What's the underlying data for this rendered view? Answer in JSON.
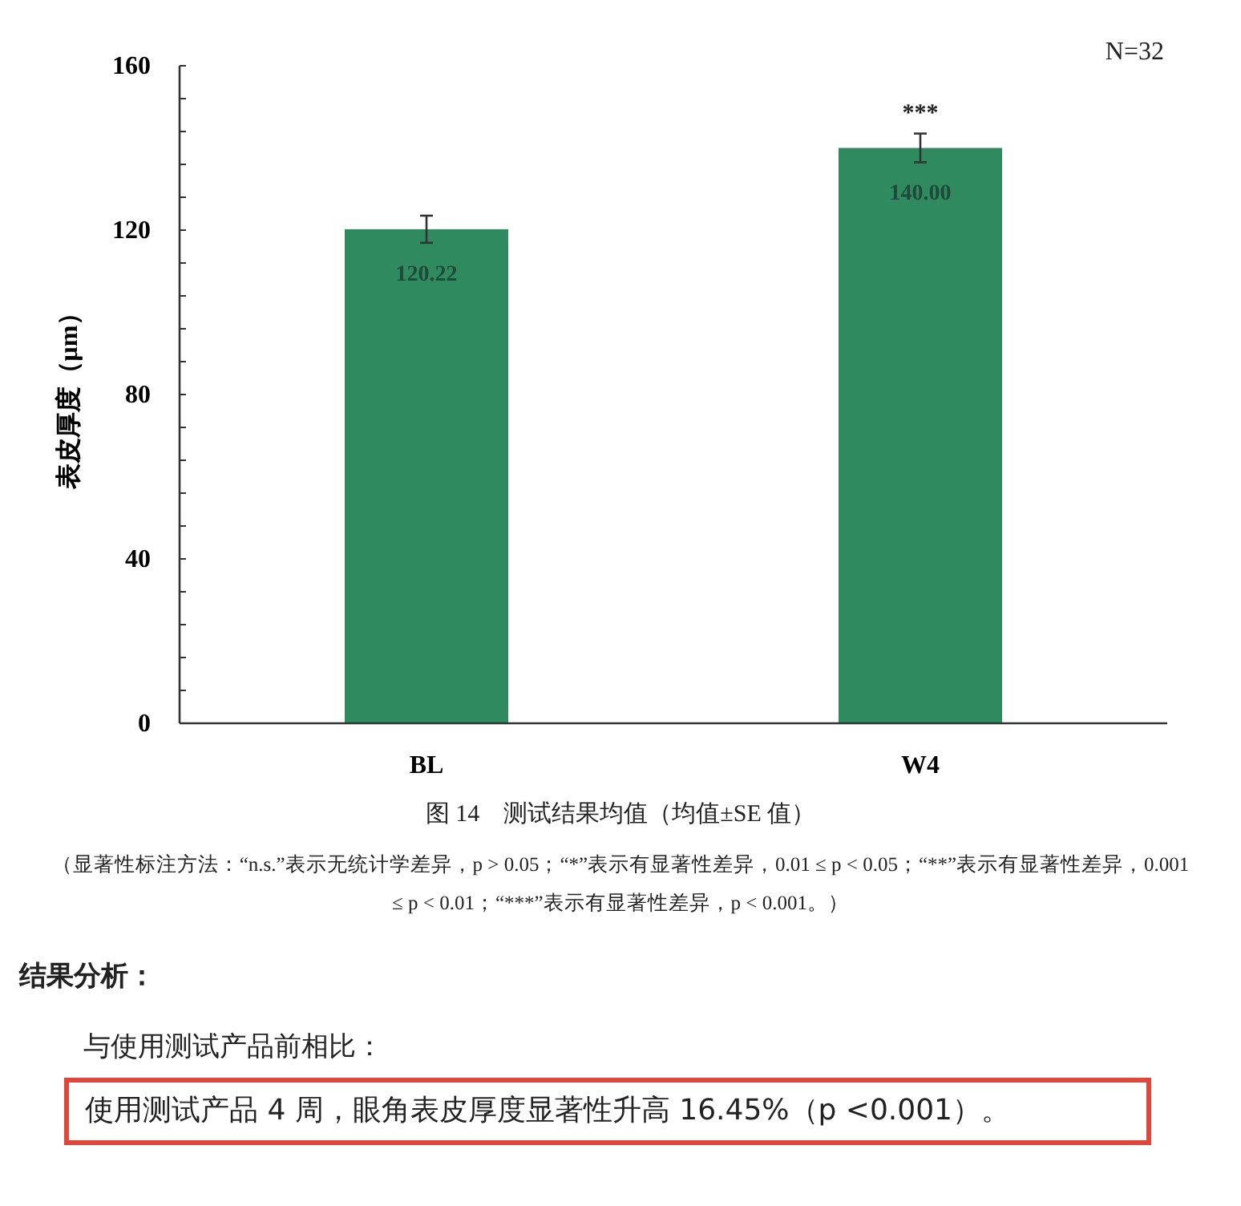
{
  "chart_data": {
    "type": "bar",
    "title": "图 14　测试结果均值（均值±SE 值）",
    "ylabel": "表皮厚度（μm）",
    "categories": [
      "BL",
      "W4"
    ],
    "values": [
      120.22,
      140.0
    ],
    "value_labels": [
      "120.22",
      "140.00"
    ],
    "errors": [
      3.3,
      3.5
    ],
    "color": "#2f8a60",
    "ylim": [
      0,
      160
    ],
    "yticks": [
      0,
      {
        "value": 8,
        "label": null
      },
      {
        "value": 16,
        "label": null
      },
      {
        "value": 24,
        "label": null
      },
      {
        "value": 32,
        "label": null
      },
      40,
      {
        "value": 48,
        "label": null
      },
      {
        "value": 56,
        "label": null
      },
      {
        "value": 64,
        "label": null
      },
      {
        "value": 72,
        "label": null
      },
      80,
      {
        "value": 88,
        "label": null
      },
      {
        "value": 96,
        "label": null
      },
      {
        "value": 104,
        "label": null
      },
      {
        "value": 112,
        "label": null
      },
      120,
      {
        "value": 128,
        "label": null
      },
      {
        "value": 136,
        "label": null
      },
      {
        "value": 144,
        "label": null
      },
      {
        "value": 152,
        "label": null
      },
      160
    ],
    "grid": false,
    "annotations": [
      "***",
      "N=32",
      "（显著性标注方法：“n.s.”表示无统计学差异，p > 0.05；“*”表示有显著性差异，0.01 ≤ p < 0.05；“**”表示有显著性差异，0.001 ≤ p < 0.01；“***”表示有显著性差异，p < 0.001。）",
      "结果分析：",
      "与使用测试产品前相比：",
      "使用测试产品 4 周，眼角表皮厚度显著性升高 16.45%（p <0.001）。"
    ]
  }
}
